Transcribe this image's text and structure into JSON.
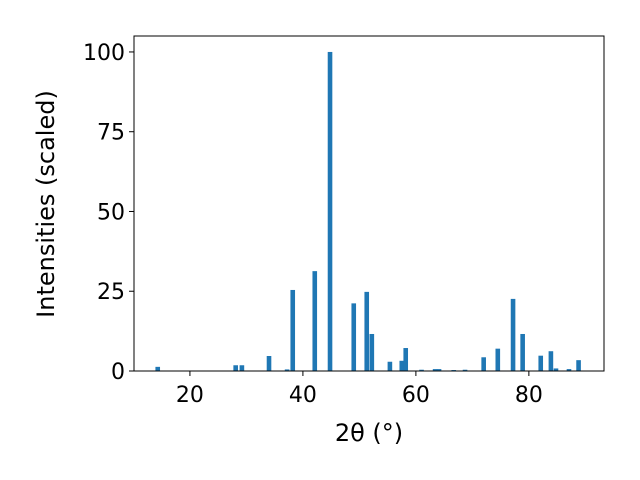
{
  "chart_data": {
    "type": "bar",
    "xlabel": "2θ (°)",
    "ylabel": "Intensities (scaled)",
    "x": [
      14.3,
      28.1,
      29.2,
      34.0,
      37.2,
      38.2,
      42.1,
      44.8,
      49.0,
      51.3,
      52.2,
      55.4,
      57.5,
      58.2,
      61.0,
      63.4,
      64.1,
      66.7,
      68.7,
      72.0,
      74.5,
      77.2,
      78.9,
      82.1,
      83.9,
      84.8,
      87.1,
      88.8
    ],
    "values": [
      1.3,
      1.8,
      1.8,
      4.7,
      0.5,
      25.4,
      31.3,
      100,
      21.2,
      24.8,
      11.6,
      2.9,
      3.2,
      7.2,
      0.4,
      0.6,
      0.6,
      0.3,
      0.4,
      4.3,
      7.0,
      22.6,
      11.6,
      4.8,
      6.2,
      0.8,
      0.6,
      3.4
    ],
    "color": "#1f77b4",
    "xlim": [
      10.1,
      93.3
    ],
    "xticks": [
      20,
      40,
      60,
      80
    ],
    "ylim": [
      0,
      105
    ],
    "yticks": [
      0,
      25,
      50,
      75,
      100
    ],
    "grid": false
  }
}
